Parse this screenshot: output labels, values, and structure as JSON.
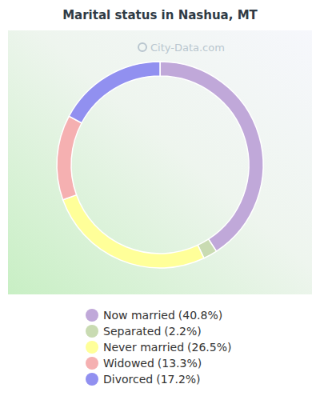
{
  "chart_data": {
    "type": "donut",
    "title": "Marital status in Nashua, MT",
    "categories": [
      "Now married",
      "Separated",
      "Never married",
      "Widowed",
      "Divorced"
    ],
    "values": [
      40.8,
      2.2,
      26.5,
      13.3,
      17.2
    ],
    "value_labels": [
      "(40.8%)",
      "(2.2%)",
      "(26.5%)",
      "(13.3%)",
      "(17.2%)"
    ],
    "colors": [
      "#c0a8d9",
      "#c9dbb2",
      "#ffff99",
      "#f5b0b1",
      "#9190f0"
    ],
    "legend": "bottom",
    "annotations": [
      "City-Data.com"
    ]
  }
}
